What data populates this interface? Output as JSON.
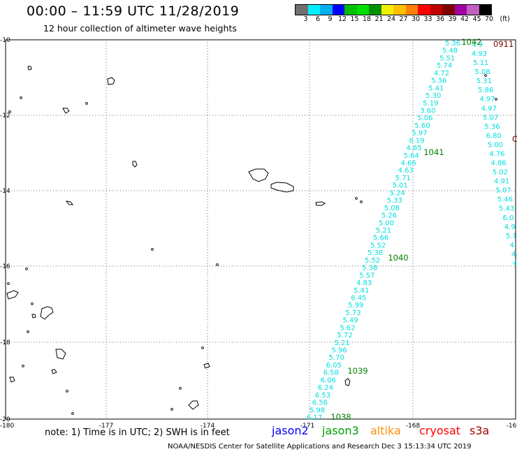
{
  "header": {
    "title": "00:00 – 11:59 UTC 11/28/2019",
    "subtitle": "12 hour collection of altimeter wave heights"
  },
  "colorbar": {
    "colors": [
      "#707070",
      "#00f0ff",
      "#00b0f0",
      "#0000ff",
      "#00c000",
      "#00e000",
      "#009000",
      "#f0f000",
      "#ffc000",
      "#ff8000",
      "#ff0000",
      "#c00000",
      "#800000",
      "#a000a0",
      "#c060c0",
      "#000000"
    ],
    "ticks": [
      "3",
      "6",
      "9",
      "12",
      "15",
      "18",
      "21",
      "24",
      "27",
      "30",
      "33",
      "36",
      "39",
      "42",
      "45",
      "70"
    ],
    "unit": "(ft)"
  },
  "map": {
    "lon_ticks": [
      "-180",
      "-177",
      "-174",
      "-171",
      "-168",
      "-16"
    ],
    "lat_ticks": [
      "-10",
      "-12",
      "-14",
      "-16",
      "-18",
      "-20"
    ],
    "colors": {
      "jason3": "#008000",
      "cryosat": "#800000",
      "track": "#00dede"
    },
    "track_labels": [
      "5.36",
      "5.48",
      "5.51",
      "5.74",
      "4.72",
      "5.36",
      "5.41",
      "5.30",
      "5.19",
      "3.60",
      "5.06",
      "5.60",
      "5.97",
      "6.19",
      "4.85",
      "5.64",
      "4.66",
      "4.63",
      "5.71",
      "5.01",
      "5.24",
      "5.33",
      "5.08",
      "5.26",
      "5.00",
      "5.21",
      "5.66",
      "5.52",
      "5.38",
      "5.52",
      "5.38",
      "5.57",
      "4.83",
      "5.41",
      "6.45",
      "5.99",
      "5.73",
      "5.49",
      "5.62",
      "5.72",
      "5.21",
      "5.96",
      "5.70",
      "6.05",
      "6.58",
      "6.06",
      "6.24",
      "6.53",
      "6.56",
      "5.98",
      "6.17"
    ],
    "right_track_labels": [
      "4.93",
      "5.11",
      "5.08",
      "5.31",
      "5.86",
      "4.97",
      "4.97",
      "5.07",
      "5.36",
      "6.80",
      "5.00",
      "4.76",
      "4.86",
      "5.02",
      "4.91",
      "5.07",
      "5.46",
      "5.43",
      "6.0",
      "4.9",
      "5.1",
      "4.",
      "4.",
      "4."
    ],
    "overlap_label": "4.9",
    "orbit_labels": [
      "1042",
      "1041",
      "1040",
      "1039",
      "1038"
    ],
    "cryosat_label": "0911",
    "cryosat_partial": "C"
  },
  "footer": {
    "note": "note: 1) Time is in UTC; 2) SWH is in feet",
    "legend": [
      {
        "name": "jason2",
        "color": "#0000ff"
      },
      {
        "name": "jason3",
        "color": "#00a000"
      },
      {
        "name": "altika",
        "color": "#ff9000"
      },
      {
        "name": "cryosat",
        "color": "#ff0000"
      },
      {
        "name": "s3a",
        "color": "#a00000"
      }
    ],
    "credit": "NOAA/NESDIS Center for Satellite Applications and Research   Dec  3 15:13:34 UTC 2019"
  }
}
